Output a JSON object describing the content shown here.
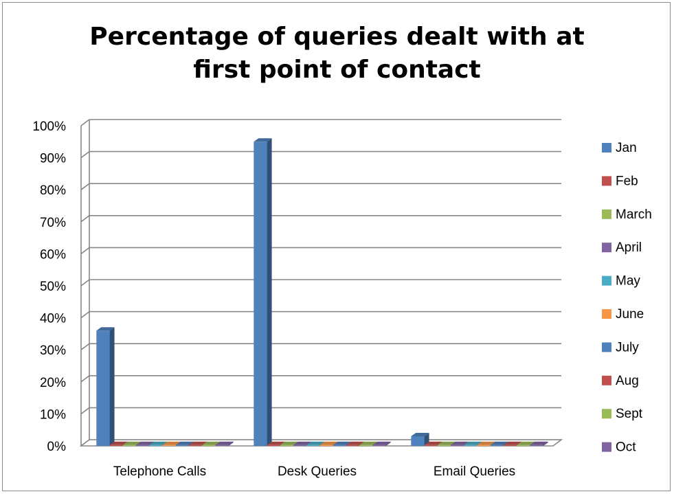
{
  "chart_data": {
    "type": "bar",
    "title": "Percentage of queries dealt with at first point of contact",
    "title_lines": [
      "Percentage of queries dealt with at",
      "first point of contact"
    ],
    "categories": [
      "Telephone Calls",
      "Desk Queries",
      "Email Queries"
    ],
    "ylim": [
      0,
      100
    ],
    "yticks": [
      0,
      10,
      20,
      30,
      40,
      50,
      60,
      70,
      80,
      90,
      100
    ],
    "ytick_labels": [
      "0%",
      "10%",
      "20%",
      "30%",
      "40%",
      "50%",
      "60%",
      "70%",
      "80%",
      "90%",
      "100%"
    ],
    "grid": true,
    "legend_position": "right",
    "series": [
      {
        "name": "Jan",
        "color": "#4F81BD",
        "values": [
          36,
          95,
          3
        ]
      },
      {
        "name": "Feb",
        "color": "#C0504D",
        "values": [
          0,
          0,
          0
        ]
      },
      {
        "name": "March",
        "color": "#9BBB59",
        "values": [
          0,
          0,
          0
        ]
      },
      {
        "name": "April",
        "color": "#8064A2",
        "values": [
          0,
          0,
          0
        ]
      },
      {
        "name": "May",
        "color": "#4BACC6",
        "values": [
          0,
          0,
          0
        ]
      },
      {
        "name": "June",
        "color": "#F79646",
        "values": [
          0,
          0,
          0
        ]
      },
      {
        "name": "July",
        "color": "#4F81BD",
        "values": [
          0,
          0,
          0
        ]
      },
      {
        "name": "Aug",
        "color": "#C0504D",
        "values": [
          0,
          0,
          0
        ]
      },
      {
        "name": "Sept",
        "color": "#9BBB59",
        "values": [
          0,
          0,
          0
        ]
      },
      {
        "name": "Oct",
        "color": "#8064A2",
        "values": [
          0,
          0,
          0
        ]
      }
    ]
  }
}
